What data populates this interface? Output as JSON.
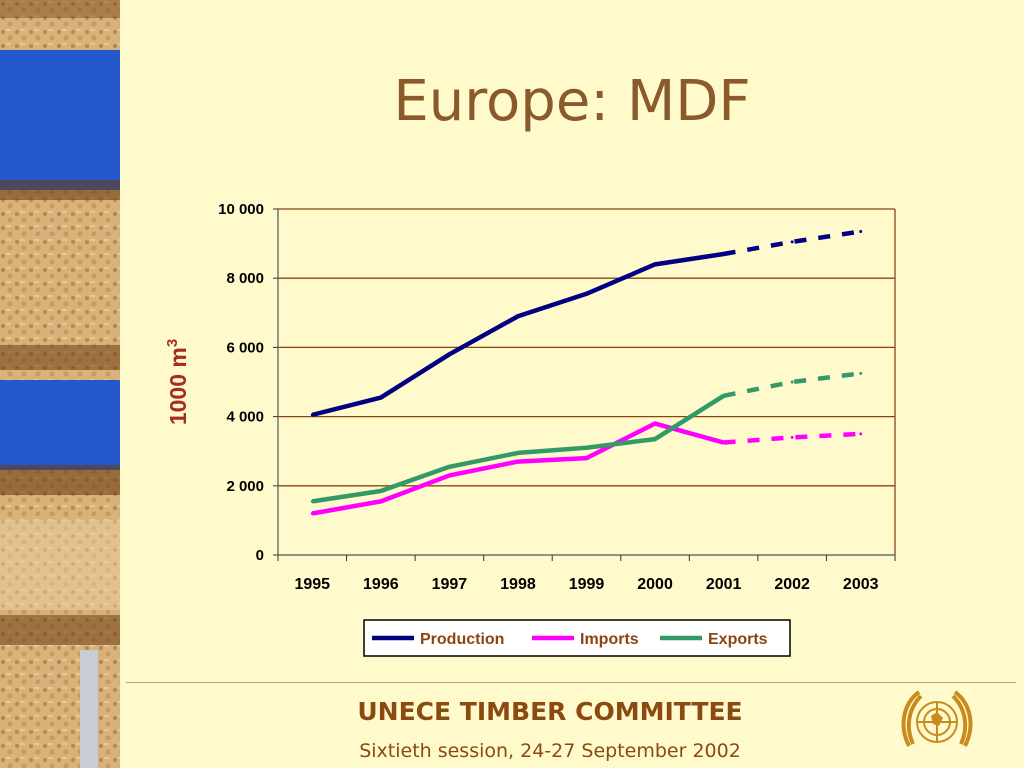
{
  "slide": {
    "title": "Europe: MDF"
  },
  "footer": {
    "org": "UNECE TIMBER COMMITTEE",
    "session": "Sixtieth session, 24-27 September 2002"
  },
  "colors": {
    "background": "#FFFACC",
    "title": "#8A5A2B",
    "axis": "#8B4513",
    "ylabel": "#A52A2A",
    "production": "#000080",
    "imports": "#FF00FF",
    "exports": "#339966"
  },
  "icons": {
    "emblem": "un-emblem-icon"
  },
  "chart_data": {
    "type": "line",
    "title": "",
    "ylabel": "1000 m",
    "ylabel_superscript": "3",
    "categories": [
      "1995",
      "1996",
      "1997",
      "1998",
      "1999",
      "2000",
      "2001",
      "2002",
      "2003"
    ],
    "ylim": [
      0,
      10000
    ],
    "yticks": [
      0,
      2000,
      4000,
      6000,
      8000,
      10000
    ],
    "ytick_labels": [
      "0",
      "2 000",
      "4 000",
      "6 000",
      "8 000",
      "10 000"
    ],
    "grid": true,
    "legend_position": "bottom",
    "forecast_from": "2001",
    "series": [
      {
        "name": "Production",
        "color": "#000080",
        "values": [
          4050,
          4550,
          5800,
          6900,
          7550,
          8400,
          8700,
          9050,
          9350
        ]
      },
      {
        "name": "Imports",
        "color": "#FF00FF",
        "values": [
          1200,
          1550,
          2300,
          2700,
          2800,
          3800,
          3250,
          3400,
          3500
        ]
      },
      {
        "name": "Exports",
        "color": "#339966",
        "values": [
          1550,
          1850,
          2550,
          2950,
          3100,
          3350,
          4600,
          5000,
          5250
        ]
      }
    ]
  }
}
